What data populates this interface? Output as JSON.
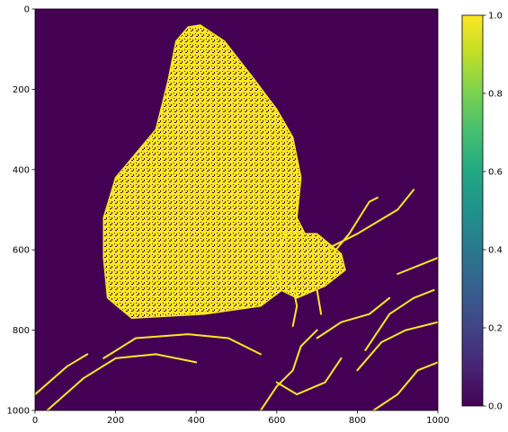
{
  "chart_data": {
    "type": "heatmap",
    "title": "",
    "xlabel": "",
    "ylabel": "",
    "xlim": [
      0,
      1000
    ],
    "ylim": [
      1000,
      0
    ],
    "x_ticks": [
      0,
      200,
      400,
      600,
      800,
      1000
    ],
    "y_ticks": [
      0,
      200,
      400,
      600,
      800,
      1000
    ],
    "colormap": "viridis",
    "background_color": "#440154",
    "foreground_color": "#fde725",
    "value_range": [
      0.0,
      1.0
    ],
    "colorbar_ticks": [
      "0.0",
      "0.2",
      "0.4",
      "0.6",
      "0.8",
      "1.0"
    ],
    "colorbar_stops": [
      {
        "offset": 0.0,
        "color": "#440154"
      },
      {
        "offset": 0.1,
        "color": "#482475"
      },
      {
        "offset": 0.2,
        "color": "#414487"
      },
      {
        "offset": 0.3,
        "color": "#355f8d"
      },
      {
        "offset": 0.4,
        "color": "#2a788e"
      },
      {
        "offset": 0.5,
        "color": "#21918c"
      },
      {
        "offset": 0.6,
        "color": "#22a884"
      },
      {
        "offset": 0.7,
        "color": "#44bf70"
      },
      {
        "offset": 0.8,
        "color": "#7ad151"
      },
      {
        "offset": 0.9,
        "color": "#bddf26"
      },
      {
        "offset": 1.0,
        "color": "#fde725"
      }
    ],
    "subject": "binary edge map of a butterfly on a flower",
    "regions": [
      {
        "name": "wing",
        "value": 1,
        "outline": [
          [
            410,
            40
          ],
          [
            470,
            80
          ],
          [
            540,
            170
          ],
          [
            600,
            250
          ],
          [
            640,
            320
          ],
          [
            660,
            420
          ],
          [
            650,
            520
          ],
          [
            690,
            600
          ],
          [
            640,
            680
          ],
          [
            560,
            740
          ],
          [
            420,
            760
          ],
          [
            240,
            770
          ],
          [
            180,
            720
          ],
          [
            170,
            620
          ],
          [
            170,
            520
          ],
          [
            200,
            420
          ],
          [
            300,
            300
          ],
          [
            330,
            180
          ],
          [
            350,
            80
          ],
          [
            380,
            45
          ]
        ]
      },
      {
        "name": "body",
        "value": 1,
        "outline": [
          [
            620,
            560
          ],
          [
            700,
            560
          ],
          [
            760,
            610
          ],
          [
            770,
            650
          ],
          [
            720,
            690
          ],
          [
            650,
            720
          ],
          [
            610,
            700
          ],
          [
            600,
            630
          ]
        ]
      }
    ],
    "lines": [
      {
        "name": "antenna-1",
        "points": [
          [
            730,
            620
          ],
          [
            780,
            560
          ],
          [
            830,
            480
          ],
          [
            850,
            470
          ]
        ]
      },
      {
        "name": "antenna-2",
        "points": [
          [
            720,
            600
          ],
          [
            800,
            560
          ],
          [
            900,
            500
          ],
          [
            940,
            450
          ]
        ]
      },
      {
        "name": "leg-1",
        "points": [
          [
            640,
            690
          ],
          [
            650,
            740
          ],
          [
            640,
            790
          ]
        ]
      },
      {
        "name": "leg-2",
        "points": [
          [
            700,
            700
          ],
          [
            710,
            760
          ]
        ]
      },
      {
        "name": "petal-1",
        "points": [
          [
            30,
            1000
          ],
          [
            120,
            920
          ],
          [
            200,
            870
          ],
          [
            300,
            860
          ],
          [
            400,
            880
          ]
        ]
      },
      {
        "name": "petal-2",
        "points": [
          [
            170,
            870
          ],
          [
            250,
            820
          ],
          [
            380,
            810
          ],
          [
            480,
            820
          ],
          [
            560,
            860
          ]
        ]
      },
      {
        "name": "petal-3",
        "points": [
          [
            560,
            1000
          ],
          [
            600,
            940
          ],
          [
            640,
            900
          ],
          [
            660,
            840
          ],
          [
            700,
            800
          ]
        ]
      },
      {
        "name": "petal-4",
        "points": [
          [
            600,
            930
          ],
          [
            650,
            960
          ],
          [
            720,
            930
          ],
          [
            760,
            870
          ]
        ]
      },
      {
        "name": "petal-5",
        "points": [
          [
            840,
            1000
          ],
          [
            900,
            960
          ],
          [
            950,
            900
          ],
          [
            1000,
            880
          ]
        ]
      },
      {
        "name": "petal-6",
        "points": [
          [
            820,
            850
          ],
          [
            880,
            760
          ],
          [
            940,
            720
          ],
          [
            990,
            700
          ]
        ]
      },
      {
        "name": "petal-7",
        "points": [
          [
            800,
            900
          ],
          [
            860,
            830
          ],
          [
            920,
            800
          ],
          [
            1000,
            780
          ]
        ]
      },
      {
        "name": "petal-8",
        "points": [
          [
            900,
            660
          ],
          [
            950,
            640
          ],
          [
            1000,
            620
          ]
        ]
      },
      {
        "name": "petal-9",
        "points": [
          [
            700,
            820
          ],
          [
            760,
            780
          ],
          [
            830,
            760
          ],
          [
            880,
            720
          ]
        ]
      },
      {
        "name": "petal-10",
        "points": [
          [
            0,
            960
          ],
          [
            80,
            890
          ],
          [
            130,
            860
          ]
        ]
      }
    ]
  }
}
